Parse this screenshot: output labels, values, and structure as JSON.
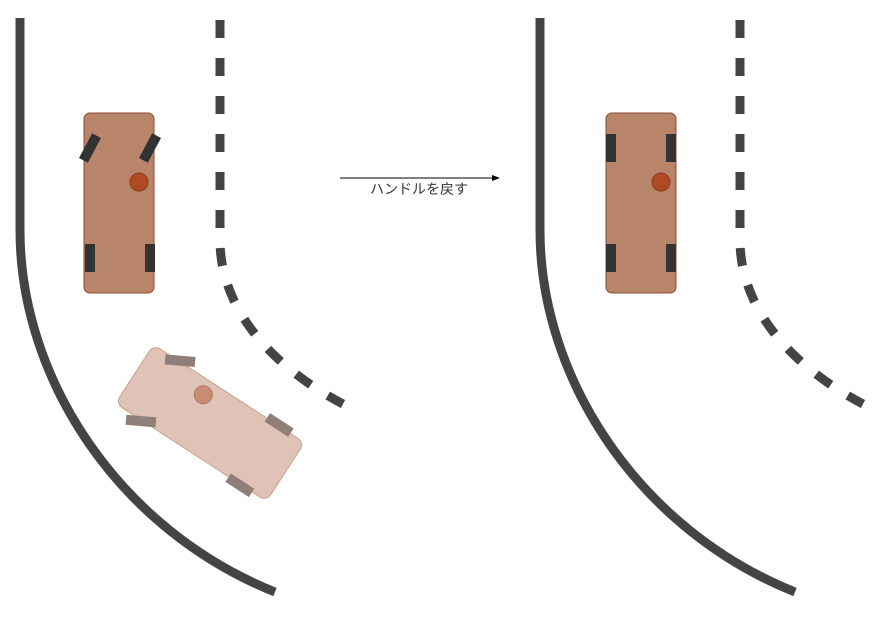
{
  "diagram": {
    "arrow_label": "ハンドルを戻す",
    "colors": {
      "road": "#444444",
      "car_body": "#b8856a",
      "car_body_ghost": "#dfc3b6",
      "car_stroke": "#8c4a30",
      "car_stroke_ghost": "#c9a08c",
      "pivot": "#b04a25",
      "pivot_ghost": "#c98b72",
      "wheel": "#333333",
      "wheel_ghost": "#8f7f78",
      "arrow": "#000000"
    }
  }
}
